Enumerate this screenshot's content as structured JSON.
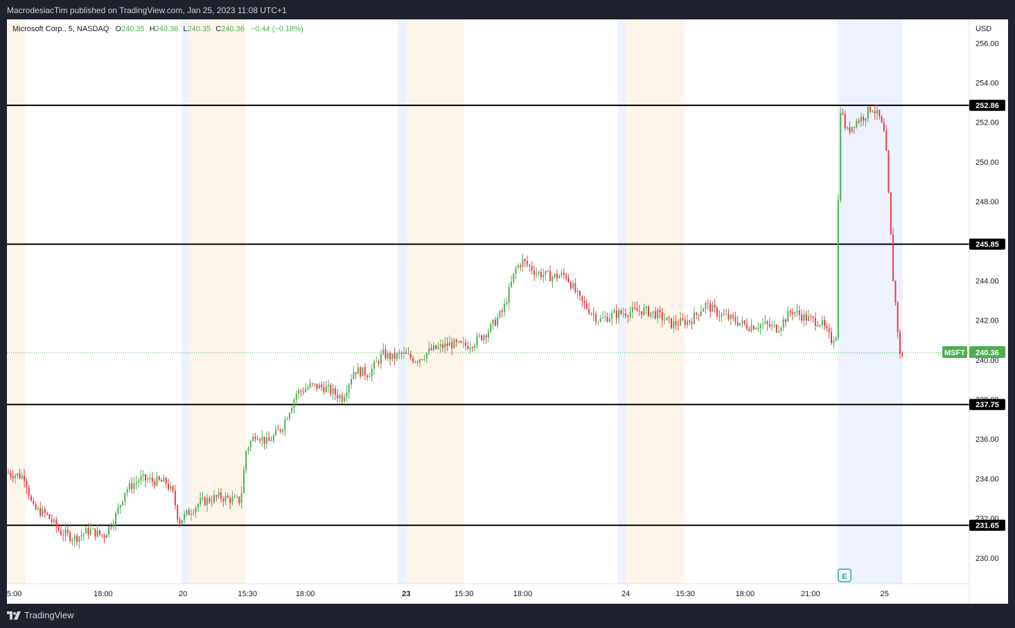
{
  "header": {
    "published": "MacrodesiacTim published on TradingView.com, Jan 25, 2023 11:08 UTC+1"
  },
  "legend": {
    "symbol": "Microsoft Corp., 5, NASDAQ",
    "o_label": "O",
    "o_value": "240.35",
    "h_label": "H",
    "h_value": "240.36",
    "l_label": "L",
    "l_value": "240.35",
    "c_label": "C",
    "c_value": "240.36",
    "change": "−0.44 (−0.18%)"
  },
  "price_axis": {
    "currency": "USD"
  },
  "last_price": {
    "ticker": "MSFT",
    "value": "240.36"
  },
  "earnings_marker": "E",
  "footer": {
    "brand": "TradingView"
  },
  "colors": {
    "up": "#4caf50",
    "down": "#f23645",
    "premarket": "#edf2fe",
    "postmarket": "#fdf5ea",
    "level": "#000000",
    "last": "#4caf50",
    "grid_bg": "#ffffff"
  },
  "chart_data": {
    "type": "candlestick",
    "symbol": "MSFT",
    "interval": "5",
    "y_range": [
      228.7,
      257.2
    ],
    "y_ticks": [
      230,
      232,
      234,
      236,
      238,
      240,
      242,
      244,
      246,
      248,
      250,
      252,
      254,
      256
    ],
    "y_tick_labels": [
      "230.00",
      "232.00",
      "234.00",
      "236.00",
      "238.00",
      "240.00",
      "242.00",
      "244.00",
      "246.00",
      "248.00",
      "250.00",
      "252.00",
      "254.00",
      "256.00"
    ],
    "x_labels": [
      {
        "label": "5:00",
        "pos": 0.0,
        "bold": false
      },
      {
        "label": "18:00",
        "pos": 0.1,
        "bold": false
      },
      {
        "label": "20",
        "pos": 0.183,
        "bold": false
      },
      {
        "label": "15:30",
        "pos": 0.25,
        "bold": false
      },
      {
        "label": "18:00",
        "pos": 0.31,
        "bold": false
      },
      {
        "label": "23",
        "pos": 0.415,
        "bold": true
      },
      {
        "label": "15:30",
        "pos": 0.475,
        "bold": false
      },
      {
        "label": "18:00",
        "pos": 0.536,
        "bold": false
      },
      {
        "label": "24",
        "pos": 0.643,
        "bold": false
      },
      {
        "label": "15:30",
        "pos": 0.705,
        "bold": false
      },
      {
        "label": "18:00",
        "pos": 0.767,
        "bold": false
      },
      {
        "label": "21:00",
        "pos": 0.835,
        "bold": false
      },
      {
        "label": "25",
        "pos": 0.912,
        "bold": false
      }
    ],
    "session_bands": [
      {
        "type": "post",
        "start": 0.0,
        "end": 0.019
      },
      {
        "type": "pre",
        "start": 0.181,
        "end": 0.189
      },
      {
        "type": "post",
        "start": 0.189,
        "end": 0.248
      },
      {
        "type": "pre",
        "start": 0.406,
        "end": 0.416
      },
      {
        "type": "post",
        "start": 0.416,
        "end": 0.475
      },
      {
        "type": "pre",
        "start": 0.635,
        "end": 0.643
      },
      {
        "type": "post",
        "start": 0.643,
        "end": 0.704
      },
      {
        "type": "pre",
        "start": 0.863,
        "end": 0.931
      }
    ],
    "levels": [
      {
        "label": "252.86",
        "value": 252.86
      },
      {
        "label": "245.85",
        "value": 245.85
      },
      {
        "label": "237.75",
        "value": 237.75
      },
      {
        "label": "231.65",
        "value": 231.65
      }
    ],
    "last_value": 240.36,
    "price_path": [
      [
        0.0,
        234.3
      ],
      [
        0.018,
        234.1
      ],
      [
        0.026,
        232.5
      ],
      [
        0.04,
        232.2
      ],
      [
        0.055,
        231.3
      ],
      [
        0.07,
        231.0
      ],
      [
        0.085,
        231.4
      ],
      [
        0.1,
        231.1
      ],
      [
        0.113,
        232.2
      ],
      [
        0.122,
        233.4
      ],
      [
        0.138,
        234.0
      ],
      [
        0.15,
        233.9
      ],
      [
        0.165,
        233.8
      ],
      [
        0.172,
        233.2
      ],
      [
        0.178,
        231.8
      ],
      [
        0.181,
        232.0
      ],
      [
        0.2,
        232.8
      ],
      [
        0.22,
        233.1
      ],
      [
        0.236,
        232.9
      ],
      [
        0.242,
        232.9
      ],
      [
        0.248,
        235.5
      ],
      [
        0.258,
        236.3
      ],
      [
        0.27,
        235.8
      ],
      [
        0.285,
        236.6
      ],
      [
        0.3,
        238.3
      ],
      [
        0.315,
        238.7
      ],
      [
        0.33,
        238.6
      ],
      [
        0.34,
        238.3
      ],
      [
        0.348,
        238.1
      ],
      [
        0.36,
        239.5
      ],
      [
        0.375,
        239.3
      ],
      [
        0.39,
        240.3
      ],
      [
        0.4,
        240.1
      ],
      [
        0.41,
        240.3
      ],
      [
        0.425,
        240.0
      ],
      [
        0.44,
        240.5
      ],
      [
        0.46,
        240.8
      ],
      [
        0.475,
        240.7
      ],
      [
        0.485,
        240.9
      ],
      [
        0.5,
        241.5
      ],
      [
        0.515,
        242.5
      ],
      [
        0.528,
        244.6
      ],
      [
        0.535,
        245.0
      ],
      [
        0.55,
        244.4
      ],
      [
        0.565,
        244.2
      ],
      [
        0.58,
        244.3
      ],
      [
        0.595,
        243.0
      ],
      [
        0.605,
        242.5
      ],
      [
        0.615,
        242.0
      ],
      [
        0.63,
        242.3
      ],
      [
        0.643,
        242.4
      ],
      [
        0.66,
        242.5
      ],
      [
        0.675,
        242.3
      ],
      [
        0.69,
        241.8
      ],
      [
        0.71,
        242.0
      ],
      [
        0.725,
        242.8
      ],
      [
        0.74,
        242.3
      ],
      [
        0.755,
        242.0
      ],
      [
        0.77,
        241.7
      ],
      [
        0.785,
        241.8
      ],
      [
        0.8,
        241.6
      ],
      [
        0.815,
        242.5
      ],
      [
        0.83,
        242.1
      ],
      [
        0.845,
        241.9
      ],
      [
        0.856,
        241.0
      ],
      [
        0.862,
        241.4
      ],
      [
        0.864,
        253.0
      ],
      [
        0.872,
        251.5
      ],
      [
        0.88,
        252.0
      ],
      [
        0.89,
        252.3
      ],
      [
        0.898,
        252.8
      ],
      [
        0.906,
        252.2
      ],
      [
        0.912,
        251.2
      ],
      [
        0.916,
        247.8
      ],
      [
        0.92,
        244.2
      ],
      [
        0.924,
        242.1
      ],
      [
        0.927,
        240.2
      ],
      [
        0.932,
        240.4
      ]
    ]
  }
}
